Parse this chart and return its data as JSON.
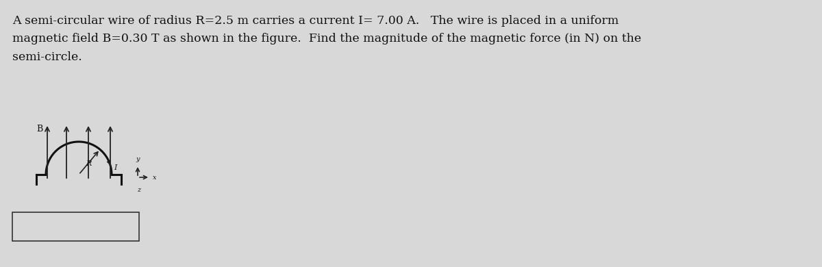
{
  "background_color": "#d8d8d8",
  "text_line1": "A semi-circular wire of radius R=2.5 m carries a current I= 7.00 A.   The wire is placed in a uniform",
  "text_line2": "magnetic field B=0.30 T as shown in the figure.  Find the magnitude of the magnetic force (in N) on the",
  "text_line3": "semi-circle.",
  "text_fontsize": 12.5,
  "text_color": "#111111",
  "fig_width": 12.0,
  "fig_height": 3.9,
  "arrow_color": "#222222",
  "wire_color": "#111111",
  "wire_lw": 2.2,
  "B_label": "B",
  "R_label": "R",
  "I_label": "I",
  "x_label": "x",
  "y_label": "y",
  "z_label": "z"
}
